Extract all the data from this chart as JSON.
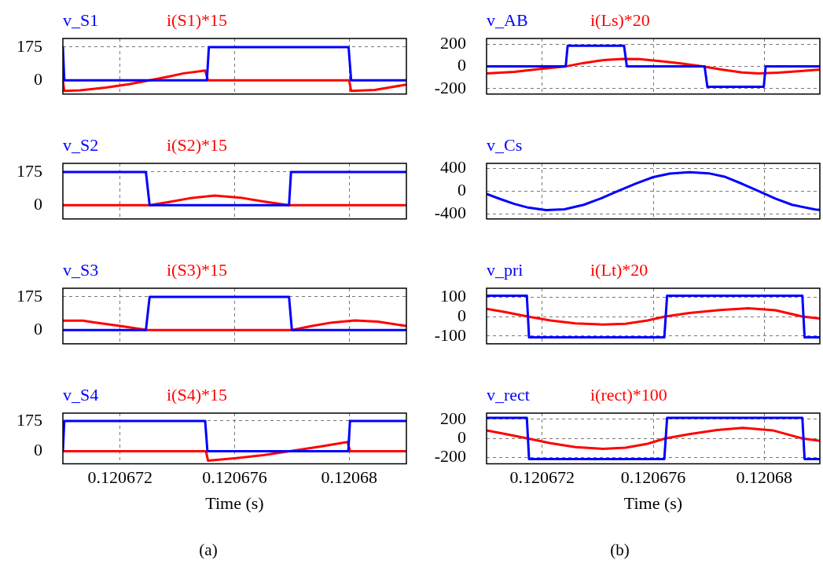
{
  "chart_data": [
    {
      "type": "line",
      "xlim": [
        0.12067,
        0.120682
      ],
      "xticks": [
        0.120672,
        0.120676,
        0.12068
      ],
      "ylim": [
        -72,
        220
      ],
      "yticks": [
        0,
        175
      ],
      "grid": true,
      "legend": "top left",
      "marker": "none",
      "line_style": "solid",
      "tick_labels": "y",
      "series": [
        {
          "name": "v_S1",
          "color": "#0000ff",
          "x": [
            0.12067,
            0.12067005,
            0.12067503,
            0.1206751,
            0.12067998,
            0.12068007,
            0.120682
          ],
          "values": [
            175,
            0,
            0,
            175,
            175,
            0,
            0
          ]
        },
        {
          "name": "i(S1)*15",
          "color": "#ff0000",
          "x": [
            0.12067,
            0.12067005,
            0.1206706,
            0.1206715,
            0.1206723,
            0.12067303,
            0.1206737,
            0.12067422,
            0.12067497,
            0.12067507,
            0.12068,
            0.12068007,
            0.1206809,
            0.120682
          ],
          "values": [
            0,
            -55,
            -52,
            -38,
            -20,
            0,
            20,
            37,
            52,
            0,
            0,
            -55,
            -50,
            -22
          ]
        }
      ]
    },
    {
      "type": "line",
      "xlim": [
        0.12067,
        0.120682
      ],
      "xticks": [
        0.120672,
        0.120676,
        0.12068
      ],
      "ylim": [
        -72,
        220
      ],
      "yticks": [
        0,
        175
      ],
      "grid": true,
      "legend": "top left",
      "marker": "none",
      "line_style": "solid",
      "tick_labels": "y",
      "series": [
        {
          "name": "v_S2",
          "color": "#0000ff",
          "x": [
            0.12067,
            0.1206729,
            0.12067303,
            0.1206779,
            0.12067797,
            0.120682
          ],
          "values": [
            175,
            175,
            0,
            0,
            175,
            175
          ]
        },
        {
          "name": "i(S2)*15",
          "color": "#ff0000",
          "x": [
            0.12067,
            0.12067303,
            0.1206737,
            0.1206744,
            0.1206753,
            0.1206762,
            0.120677,
            0.1206779,
            0.120682
          ],
          "values": [
            0,
            0,
            17,
            36,
            51,
            40,
            20,
            0,
            0
          ]
        }
      ]
    },
    {
      "type": "line",
      "xlim": [
        0.12067,
        0.120682
      ],
      "xticks": [
        0.120672,
        0.120676,
        0.12068
      ],
      "ylim": [
        -72,
        220
      ],
      "yticks": [
        0,
        175
      ],
      "grid": true,
      "legend": "top left",
      "marker": "none",
      "line_style": "solid",
      "tick_labels": "y",
      "series": [
        {
          "name": "v_S3",
          "color": "#0000ff",
          "x": [
            0.12067,
            0.1206729,
            0.12067303,
            0.1206779,
            0.120678,
            0.120682
          ],
          "values": [
            0,
            0,
            175,
            175,
            0,
            0
          ]
        },
        {
          "name": "i(S3)*15",
          "color": "#ff0000",
          "x": [
            0.12067,
            0.1206707,
            0.1206711,
            0.120672,
            0.12067295,
            0.120678,
            0.1206787,
            0.1206794,
            0.1206802,
            0.120681,
            0.120682
          ],
          "values": [
            50,
            50,
            41,
            22,
            0,
            0,
            22,
            40,
            51,
            45,
            22
          ]
        }
      ]
    },
    {
      "type": "line",
      "xlim": [
        0.12067,
        0.120682
      ],
      "xticks": [
        0.120672,
        0.120676,
        0.12068
      ],
      "ylim": [
        -72,
        220
      ],
      "yticks": [
        0,
        175
      ],
      "grid": true,
      "legend": "top left",
      "marker": "none",
      "line_style": "solid",
      "xlabel": "Time (s)",
      "annotations": [
        "(a)"
      ],
      "series": [
        {
          "name": "v_S4",
          "color": "#0000ff",
          "x": [
            0.12067,
            0.12067005,
            0.12067497,
            0.12067505,
            0.12067997,
            0.12068003,
            0.120682
          ],
          "values": [
            0,
            175,
            175,
            0,
            0,
            175,
            175
          ]
        },
        {
          "name": "i(S4)*15",
          "color": "#ff0000",
          "x": [
            0.12067,
            0.120675,
            0.12067507,
            0.12067607,
            0.120677,
            0.12067792,
            0.120679,
            0.12067974,
            0.12067995,
            0.12068003,
            0.120682
          ],
          "values": [
            0,
            0,
            -54,
            -39,
            -22,
            0,
            28,
            48,
            54,
            0,
            0
          ]
        }
      ]
    },
    {
      "type": "line",
      "xlim": [
        0.12067,
        0.120682
      ],
      "xticks": [
        0.120672,
        0.120676,
        0.12068
      ],
      "ylim": [
        -250,
        250
      ],
      "yticks": [
        -200,
        0,
        200
      ],
      "grid": true,
      "legend": "top left",
      "marker": "none",
      "line_style": "solid",
      "tick_labels": "y",
      "series": [
        {
          "name": "v_AB",
          "color": "#0000ff",
          "x": [
            0.12067,
            0.12067285,
            0.12067292,
            0.12067495,
            0.12067505,
            0.12067785,
            0.12067795,
            0.12067998,
            0.12068005,
            0.120682
          ],
          "values": [
            0,
            0,
            185,
            185,
            0,
            0,
            -185,
            -185,
            0,
            0
          ]
        },
        {
          "name": "i(Ls)*20",
          "color": "#ff0000",
          "x": [
            0.12067,
            0.120671,
            0.120672,
            0.12067288,
            0.1206735,
            0.1206742,
            0.1206749,
            0.1206755,
            0.1206763,
            0.120677,
            0.12067777,
            0.1206785,
            0.1206792,
            0.1206798,
            0.1206805,
            0.1206812,
            0.12068184,
            0.120682
          ],
          "values": [
            -65,
            -50,
            -22,
            0,
            30,
            55,
            67,
            64,
            45,
            25,
            0,
            -30,
            -55,
            -65,
            -58,
            -45,
            -32,
            -30
          ]
        }
      ]
    },
    {
      "type": "line",
      "xlim": [
        0.12067,
        0.120682
      ],
      "xticks": [
        0.120672,
        0.120676,
        0.12068
      ],
      "ylim": [
        -490,
        490
      ],
      "yticks": [
        -400,
        0,
        400
      ],
      "grid": true,
      "legend": "top left",
      "marker": "none",
      "line_style": "solid",
      "tick_labels": "y",
      "series": [
        {
          "name": "v_Cs",
          "color": "#0000ff",
          "x": [
            0.12067,
            0.1206705,
            0.120671,
            0.1206715,
            0.12067214,
            0.1206728,
            0.1206735,
            0.1206741,
            0.12067472,
            0.1206754,
            0.120676,
            0.1206766,
            0.12067731,
            0.120678,
            0.1206786,
            0.1206792,
            0.1206798,
            0.1206804,
            0.120681,
            0.12068184,
            0.120682
          ],
          "values": [
            -47,
            -140,
            -225,
            -290,
            -335,
            -320,
            -240,
            -130,
            0,
            140,
            248,
            310,
            335,
            315,
            250,
            130,
            0,
            -130,
            -240,
            -323,
            -330
          ]
        }
      ]
    },
    {
      "type": "line",
      "xlim": [
        0.12067,
        0.120682
      ],
      "xticks": [
        0.120672,
        0.120676,
        0.12068
      ],
      "ylim": [
        -140,
        145
      ],
      "yticks": [
        -100,
        0,
        100
      ],
      "grid": true,
      "legend": "top left",
      "marker": "none",
      "line_style": "solid",
      "tick_labels": "y",
      "series": [
        {
          "name": "v_pri",
          "color": "#0000ff",
          "x": [
            0.12067,
            0.12067145,
            0.12067153,
            0.1206764,
            0.1206765,
            0.12068137,
            0.12068145,
            0.120682
          ],
          "values": [
            107,
            107,
            -107,
            -107,
            107,
            107,
            -107,
            -107
          ]
        },
        {
          "name": "i(Lt)*20",
          "color": "#ff0000",
          "x": [
            0.12067,
            0.1206707,
            0.12067148,
            0.1206723,
            0.1206732,
            0.12067417,
            0.120675,
            0.1206758,
            0.12067643,
            0.1206773,
            0.1206784,
            0.12067943,
            0.1206804,
            0.12068137,
            0.120682
          ],
          "values": [
            39,
            22,
            0,
            -20,
            -35,
            -41,
            -37,
            -20,
            0,
            18,
            33,
            42,
            32,
            0,
            -10
          ]
        }
      ]
    },
    {
      "type": "line",
      "xlim": [
        0.12067,
        0.120682
      ],
      "xticks": [
        0.120672,
        0.120676,
        0.12068
      ],
      "ylim": [
        -265,
        265
      ],
      "yticks": [
        -200,
        0,
        200
      ],
      "grid": true,
      "legend": "top left",
      "marker": "none",
      "line_style": "solid",
      "xlabel": "Time (s)",
      "annotations": [
        "(b)"
      ],
      "series": [
        {
          "name": "v_rect",
          "color": "#0000ff",
          "x": [
            0.12067,
            0.12067145,
            0.12067153,
            0.1206764,
            0.1206765,
            0.12068137,
            0.12068145,
            0.120682
          ],
          "values": [
            215,
            215,
            -215,
            -215,
            215,
            215,
            -215,
            -215
          ]
        },
        {
          "name": "i(rect)*100",
          "color": "#ff0000",
          "x": [
            0.12067,
            0.1206707,
            0.12067148,
            0.1206723,
            0.1206732,
            0.12067417,
            0.120675,
            0.1206758,
            0.12067643,
            0.1206773,
            0.1206783,
            0.12067923,
            0.1206803,
            0.12068137,
            0.120682
          ],
          "values": [
            84,
            45,
            0,
            -50,
            -90,
            -108,
            -97,
            -55,
            0,
            45,
            88,
            110,
            85,
            0,
            -25
          ]
        }
      ]
    }
  ]
}
